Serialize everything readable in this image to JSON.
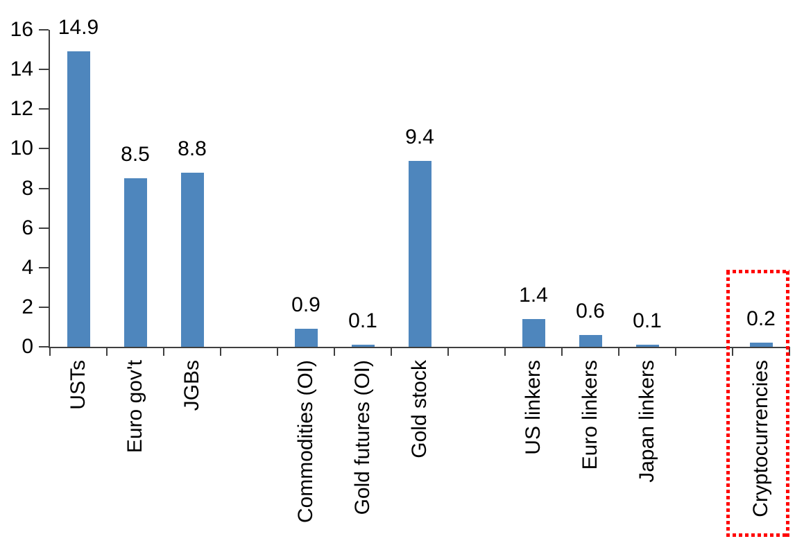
{
  "chart_data": {
    "type": "bar",
    "title": "",
    "xlabel": "",
    "ylabel": "",
    "categories": [
      "USTs",
      "Euro gov't",
      "JGBs",
      "Commodities (OI)",
      "Gold futures (OI)",
      "Gold stock",
      "US linkers",
      "Euro linkers",
      "Japan linkers",
      "Cryptocurrencies"
    ],
    "values": [
      14.9,
      8.5,
      8.8,
      0.9,
      0.1,
      9.4,
      1.4,
      0.6,
      0.1,
      0.2
    ],
    "value_labels": [
      "14.9",
      "8.5",
      "8.8",
      "0.9",
      "0.1",
      "9.4",
      "1.4",
      "0.6",
      "0.1",
      "0.2"
    ],
    "slots": [
      0,
      1,
      2,
      4,
      5,
      6,
      8,
      9,
      10,
      12
    ],
    "total_slots": 13,
    "ylim": [
      0,
      16
    ],
    "yticks": [
      0,
      2,
      4,
      6,
      8,
      10,
      12,
      14,
      16
    ],
    "grid": false,
    "legend": null,
    "bar_color": "#4E86BD",
    "axis_color": "#3F3F3F",
    "text_color": "#000000",
    "highlight": {
      "category": "Cryptocurrencies",
      "style": "dotted-rectangle",
      "color": "#FF0000"
    }
  }
}
